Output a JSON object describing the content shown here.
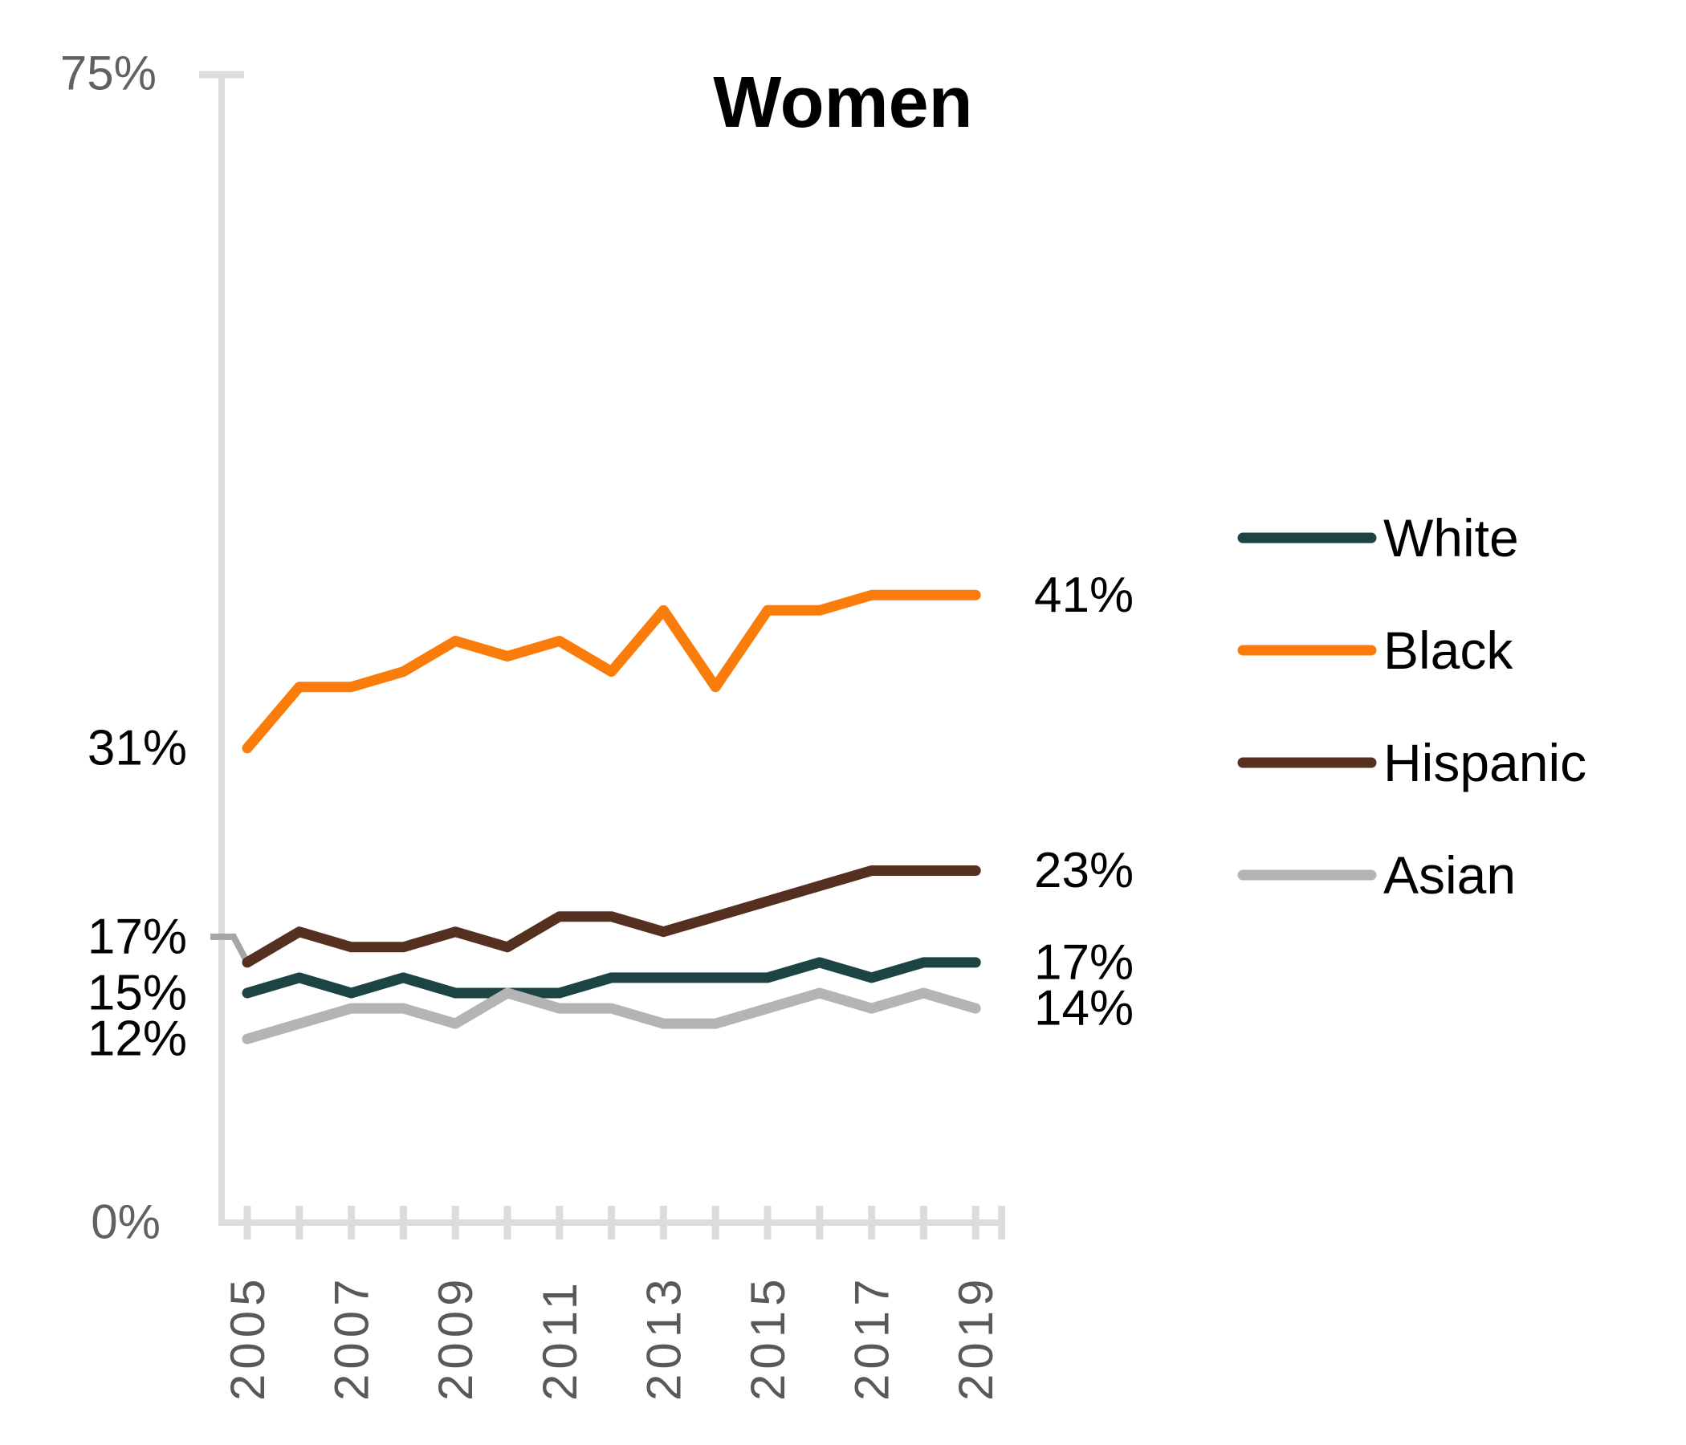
{
  "chart_data": {
    "type": "line",
    "title": "Women",
    "x": [
      2005,
      2006,
      2007,
      2008,
      2009,
      2010,
      2011,
      2012,
      2013,
      2014,
      2015,
      2016,
      2017,
      2018,
      2019
    ],
    "x_tick_labels_shown": [
      "2005",
      "2007",
      "2009",
      "2011",
      "2013",
      "2015",
      "2017",
      "2019"
    ],
    "y_axis": {
      "min": 0,
      "max": 75,
      "min_label": "0%",
      "max_label": "75%"
    },
    "grid": "off",
    "legend_position": "right",
    "series": [
      {
        "name": "White",
        "color": "#1d4444",
        "values": [
          15,
          16,
          15,
          16,
          15,
          15,
          15,
          16,
          16,
          16,
          16,
          17,
          16,
          17,
          17
        ],
        "start_label": "15%",
        "end_label": "17%",
        "start_label_dy": 0,
        "start_label_leader": false
      },
      {
        "name": "Black",
        "color": "#fa7c0a",
        "values": [
          31,
          35,
          35,
          36,
          38,
          37,
          38,
          36,
          40,
          35,
          40,
          40,
          41,
          41,
          41
        ],
        "start_label": "31%",
        "end_label": "41%",
        "start_label_dy": 0,
        "start_label_leader": false
      },
      {
        "name": "Hispanic",
        "color": "#553020",
        "values": [
          17,
          19,
          18,
          18,
          19,
          18,
          20,
          20,
          19,
          20,
          21,
          22,
          23,
          23,
          23
        ],
        "start_label": "17%",
        "end_label": "23%",
        "start_label_dy": -32,
        "start_label_leader": true
      },
      {
        "name": "Asian",
        "color": "#b4b4b4",
        "values": [
          12,
          13,
          14,
          14,
          13,
          15,
          14,
          14,
          13,
          13,
          14,
          15,
          14,
          15,
          14
        ],
        "start_label": "12%",
        "end_label": "14%",
        "start_label_dy": 0,
        "start_label_leader": false
      }
    ],
    "colors": {
      "axis": "#dcdcdc",
      "leader_line": "#a6a6a6",
      "x_tick_text": "#595959",
      "y_axis_text": "#616161"
    }
  }
}
